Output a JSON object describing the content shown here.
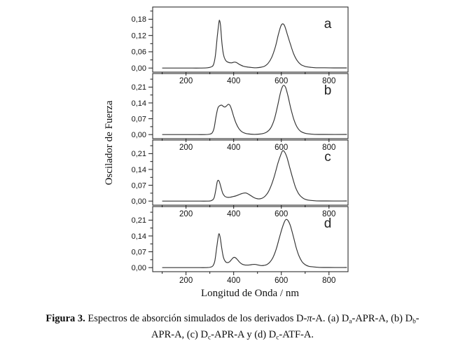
{
  "chart_data": {
    "type": "line",
    "title": "",
    "xlabel": "Longitud de Onda / nm",
    "ylabel": "Oscilador de Fuerza",
    "x_range": [
      60,
      880
    ],
    "x_major_ticks": [
      200,
      400,
      600,
      800
    ],
    "x_minor_ticks": [
      100,
      300,
      500,
      700
    ],
    "decimal_separator": ",",
    "legend": "none",
    "grid": false,
    "line_color": "#333333",
    "panels": [
      {
        "label": "a",
        "series_name": "Da-APR-A",
        "y_ticks": [
          0.0,
          0.06,
          0.12,
          0.18
        ],
        "y_range": [
          -0.015,
          0.225
        ],
        "points": [
          [
            100,
            0
          ],
          [
            200,
            0
          ],
          [
            260,
            0
          ],
          [
            290,
            0.001
          ],
          [
            305,
            0.004
          ],
          [
            315,
            0.012
          ],
          [
            323,
            0.045
          ],
          [
            331,
            0.115
          ],
          [
            338,
            0.168
          ],
          [
            341,
            0.175
          ],
          [
            345,
            0.155
          ],
          [
            351,
            0.09
          ],
          [
            357,
            0.05
          ],
          [
            365,
            0.03
          ],
          [
            375,
            0.022
          ],
          [
            390,
            0.019
          ],
          [
            403,
            0.022
          ],
          [
            412,
            0.02
          ],
          [
            425,
            0.013
          ],
          [
            440,
            0.007
          ],
          [
            455,
            0.004
          ],
          [
            475,
            0.002
          ],
          [
            495,
            0.001
          ],
          [
            515,
            0.003
          ],
          [
            530,
            0.007
          ],
          [
            545,
            0.018
          ],
          [
            560,
            0.04
          ],
          [
            575,
            0.078
          ],
          [
            588,
            0.125
          ],
          [
            598,
            0.155
          ],
          [
            606,
            0.163
          ],
          [
            614,
            0.155
          ],
          [
            625,
            0.125
          ],
          [
            638,
            0.088
          ],
          [
            652,
            0.052
          ],
          [
            666,
            0.028
          ],
          [
            682,
            0.013
          ],
          [
            700,
            0.006
          ],
          [
            720,
            0.003
          ],
          [
            745,
            0.001
          ],
          [
            780,
            0.001
          ],
          [
            830,
            0.0005
          ],
          [
            875,
            0.0005
          ]
        ]
      },
      {
        "label": "b",
        "series_name": "Db-APR-A",
        "y_ticks": [
          0.0,
          0.07,
          0.14,
          0.21
        ],
        "y_range": [
          -0.018,
          0.27
        ],
        "points": [
          [
            100,
            0
          ],
          [
            220,
            0
          ],
          [
            280,
            0
          ],
          [
            300,
            0.002
          ],
          [
            310,
            0.008
          ],
          [
            318,
            0.03
          ],
          [
            326,
            0.08
          ],
          [
            334,
            0.118
          ],
          [
            342,
            0.128
          ],
          [
            350,
            0.13
          ],
          [
            357,
            0.124
          ],
          [
            364,
            0.122
          ],
          [
            371,
            0.128
          ],
          [
            378,
            0.134
          ],
          [
            385,
            0.128
          ],
          [
            392,
            0.108
          ],
          [
            400,
            0.08
          ],
          [
            410,
            0.05
          ],
          [
            422,
            0.026
          ],
          [
            435,
            0.012
          ],
          [
            450,
            0.005
          ],
          [
            468,
            0.002
          ],
          [
            488,
            0.001
          ],
          [
            508,
            0.002
          ],
          [
            525,
            0.005
          ],
          [
            540,
            0.012
          ],
          [
            555,
            0.028
          ],
          [
            570,
            0.065
          ],
          [
            583,
            0.12
          ],
          [
            594,
            0.175
          ],
          [
            603,
            0.208
          ],
          [
            610,
            0.218
          ],
          [
            618,
            0.208
          ],
          [
            628,
            0.17
          ],
          [
            640,
            0.115
          ],
          [
            653,
            0.065
          ],
          [
            666,
            0.033
          ],
          [
            680,
            0.015
          ],
          [
            696,
            0.007
          ],
          [
            715,
            0.003
          ],
          [
            740,
            0.001
          ],
          [
            780,
            0.0005
          ],
          [
            875,
            0.0005
          ]
        ]
      },
      {
        "label": "c",
        "series_name": "Dc-APR-A",
        "y_ticks": [
          0.0,
          0.07,
          0.14,
          0.21
        ],
        "y_range": [
          -0.018,
          0.27
        ],
        "points": [
          [
            100,
            0
          ],
          [
            230,
            0
          ],
          [
            290,
            0
          ],
          [
            308,
            0.003
          ],
          [
            318,
            0.015
          ],
          [
            325,
            0.05
          ],
          [
            331,
            0.085
          ],
          [
            335,
            0.092
          ],
          [
            340,
            0.085
          ],
          [
            347,
            0.06
          ],
          [
            354,
            0.035
          ],
          [
            362,
            0.022
          ],
          [
            372,
            0.017
          ],
          [
            385,
            0.017
          ],
          [
            398,
            0.02
          ],
          [
            412,
            0.024
          ],
          [
            426,
            0.03
          ],
          [
            440,
            0.035
          ],
          [
            450,
            0.036
          ],
          [
            460,
            0.032
          ],
          [
            472,
            0.024
          ],
          [
            484,
            0.016
          ],
          [
            496,
            0.011
          ],
          [
            508,
            0.01
          ],
          [
            520,
            0.013
          ],
          [
            532,
            0.022
          ],
          [
            545,
            0.04
          ],
          [
            558,
            0.07
          ],
          [
            572,
            0.115
          ],
          [
            585,
            0.165
          ],
          [
            596,
            0.2
          ],
          [
            605,
            0.222
          ],
          [
            613,
            0.218
          ],
          [
            623,
            0.195
          ],
          [
            635,
            0.15
          ],
          [
            648,
            0.1
          ],
          [
            660,
            0.06
          ],
          [
            673,
            0.032
          ],
          [
            688,
            0.015
          ],
          [
            703,
            0.007
          ],
          [
            722,
            0.003
          ],
          [
            748,
            0.001
          ],
          [
            790,
            0.0005
          ],
          [
            875,
            0.0005
          ]
        ]
      },
      {
        "label": "d",
        "series_name": "Dc-ATF-A",
        "y_ticks": [
          0.0,
          0.07,
          0.14,
          0.21
        ],
        "y_range": [
          -0.018,
          0.27
        ],
        "points": [
          [
            100,
            0
          ],
          [
            230,
            0
          ],
          [
            285,
            0
          ],
          [
            303,
            0.002
          ],
          [
            313,
            0.008
          ],
          [
            321,
            0.03
          ],
          [
            329,
            0.09
          ],
          [
            335,
            0.135
          ],
          [
            339,
            0.15
          ],
          [
            344,
            0.13
          ],
          [
            350,
            0.085
          ],
          [
            357,
            0.045
          ],
          [
            365,
            0.027
          ],
          [
            374,
            0.022
          ],
          [
            383,
            0.026
          ],
          [
            392,
            0.037
          ],
          [
            400,
            0.045
          ],
          [
            407,
            0.044
          ],
          [
            415,
            0.036
          ],
          [
            424,
            0.025
          ],
          [
            434,
            0.016
          ],
          [
            445,
            0.012
          ],
          [
            456,
            0.011
          ],
          [
            468,
            0.012
          ],
          [
            480,
            0.014
          ],
          [
            492,
            0.014
          ],
          [
            504,
            0.011
          ],
          [
            516,
            0.009
          ],
          [
            528,
            0.01
          ],
          [
            540,
            0.014
          ],
          [
            552,
            0.024
          ],
          [
            565,
            0.045
          ],
          [
            578,
            0.08
          ],
          [
            590,
            0.125
          ],
          [
            602,
            0.17
          ],
          [
            612,
            0.2
          ],
          [
            620,
            0.213
          ],
          [
            628,
            0.208
          ],
          [
            638,
            0.185
          ],
          [
            650,
            0.14
          ],
          [
            662,
            0.09
          ],
          [
            674,
            0.052
          ],
          [
            687,
            0.026
          ],
          [
            700,
            0.013
          ],
          [
            715,
            0.006
          ],
          [
            735,
            0.003
          ],
          [
            760,
            0.001
          ],
          [
            800,
            0.0005
          ],
          [
            875,
            0.0005
          ]
        ]
      }
    ]
  },
  "caption": {
    "line1": [
      {
        "t": "Figura 3."
      },
      {
        "t": " Espectros de absorción simulados de los derivados D-"
      },
      {
        "t": "π"
      },
      {
        "t": "-A. (a) D"
      },
      {
        "t": "a"
      },
      {
        "t": "-APR-A, (b) D"
      },
      {
        "t": "b"
      },
      {
        "t": "-"
      }
    ],
    "line2": [
      {
        "t": "APR-A, (c) D"
      },
      {
        "t": "c"
      },
      {
        "t": "-APR-A y (d) D"
      },
      {
        "t": "c"
      },
      {
        "t": "-ATF-A."
      }
    ]
  }
}
